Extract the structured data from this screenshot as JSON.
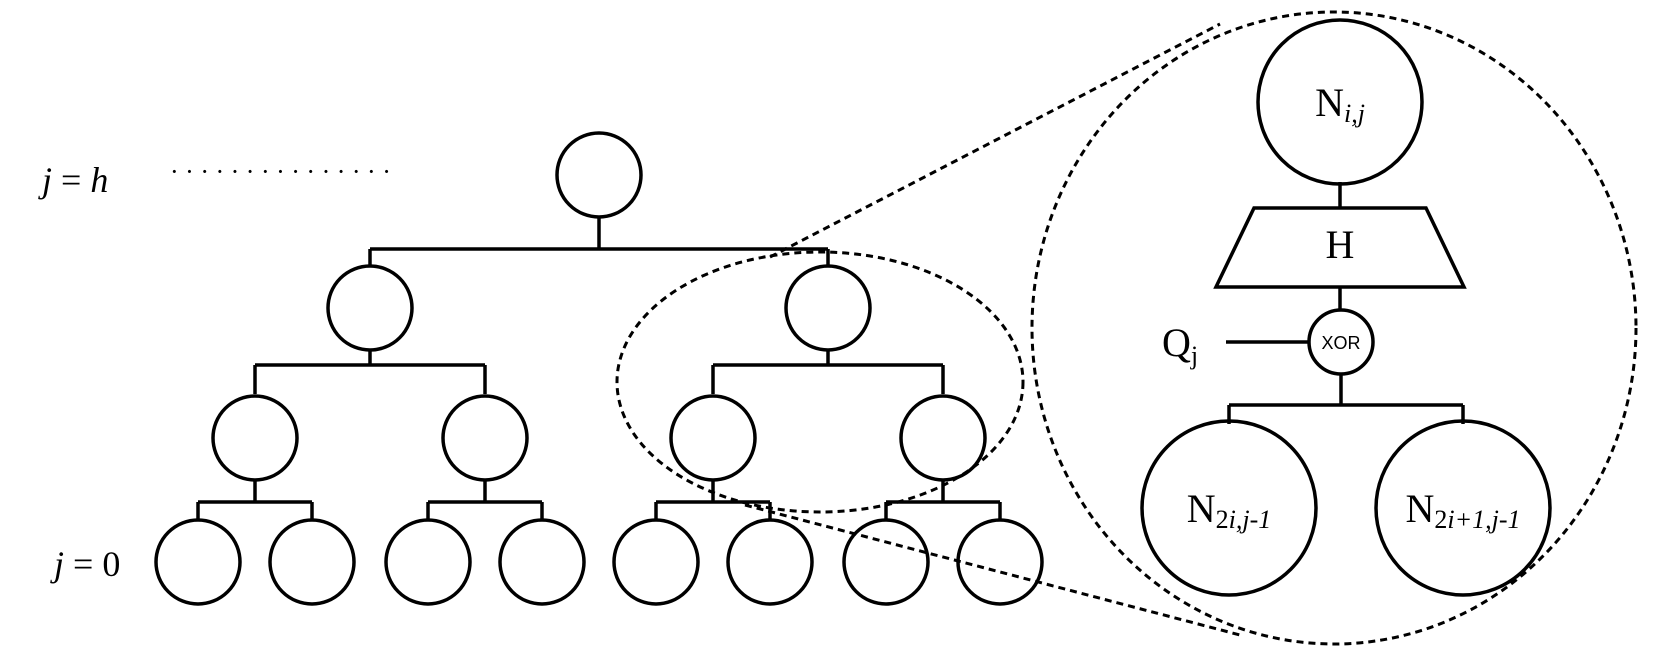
{
  "tree": {
    "level_top": {
      "var": "j",
      "eq": " = ",
      "val": "h"
    },
    "level_bottom": {
      "var": "j",
      "eq": " = ",
      "val": "0"
    },
    "dots": "·   ·   ·   ·   ·   ·   ·   ·   ·   ·   ·   ·   ·   ·   ·"
  },
  "zoom": {
    "top_node": {
      "base": "N",
      "sub": "i,j"
    },
    "hash_block": "H",
    "xor_node": "XOR",
    "q_label": {
      "base": "Q",
      "sub": "j"
    },
    "left_child": {
      "base": "N",
      "sub_num": "2",
      "sub_rest": "i,j-1"
    },
    "right_child": {
      "base": "N",
      "sub_num": "2",
      "sub_rest": "i+1,j-1"
    }
  }
}
